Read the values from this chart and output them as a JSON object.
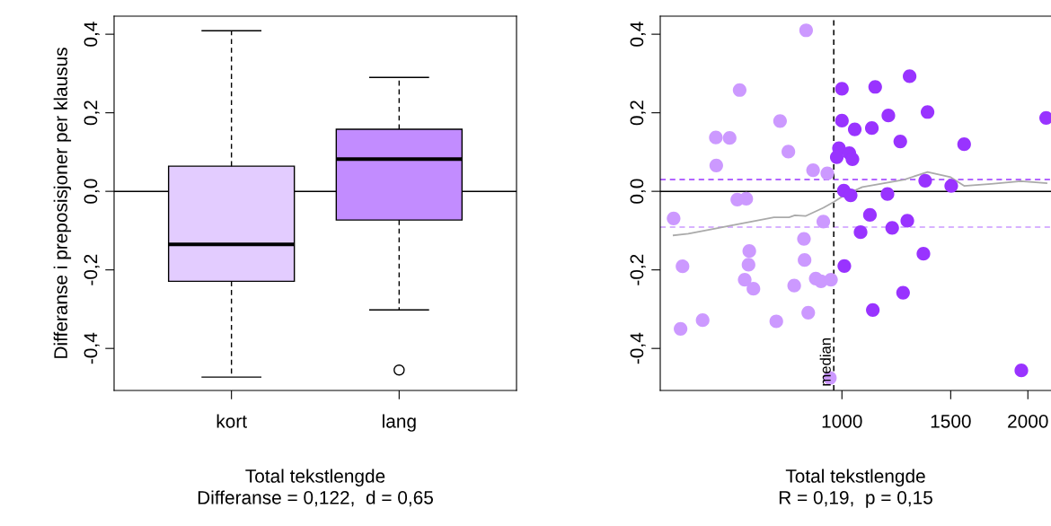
{
  "chart_data": [
    {
      "type": "box",
      "categories": [
        "kort",
        "lang"
      ],
      "colors": [
        "#e3ccff",
        "#c28cff"
      ],
      "boxes": [
        {
          "low": -0.473,
          "q1": -0.229,
          "median": -0.135,
          "q3": 0.064,
          "high": 0.409
        },
        {
          "low": -0.302,
          "q1": -0.073,
          "median": 0.082,
          "q3": 0.158,
          "high": 0.29,
          "outliers": [
            -0.455
          ]
        }
      ],
      "xlabel": "Total tekstlengde\nDifferanse = 0,122,  d = 0,65",
      "ylabel": "Differanse i preposisjoner per klausus",
      "ylim": [
        -0.507,
        0.446
      ],
      "yticks": [
        {
          "value": -0.4,
          "label": "-0,4"
        },
        {
          "value": -0.2,
          "label": "-0,2"
        },
        {
          "value": 0,
          "label": "0,0"
        },
        {
          "value": 0.2,
          "label": "0,2"
        },
        {
          "value": 0.4,
          "label": "0,4"
        }
      ],
      "ref_lines": [
        {
          "axis": "y",
          "value": 0,
          "label": null,
          "color": "#000000",
          "line_style": "solid"
        }
      ],
      "grid": false
    },
    {
      "type": "scatter",
      "log": "x",
      "xlabel": "Total tekstlengde\nR = 0,19,  p = 0,15",
      "marker": "circle",
      "xlim": [
        508,
        2180
      ],
      "xticks": [
        1000,
        1500,
        2000
      ],
      "ylim": [
        -0.507,
        0.446
      ],
      "yticks": [
        {
          "value": -0.4,
          "label": "-0,4"
        },
        {
          "value": -0.2,
          "label": "-0,2"
        },
        {
          "value": 0,
          "label": "0,0"
        },
        {
          "value": 0.2,
          "label": "0,2"
        },
        {
          "value": 0.4,
          "label": "0,4"
        }
      ],
      "series": [
        {
          "color": "#cc99ff",
          "x": [
            875,
            683,
            794,
            625,
            658,
            819,
            626,
            898,
            947,
            677,
            700,
            534,
            933,
            868,
            708,
            552,
            706,
            870,
            696,
            719,
            837,
            907,
            925,
            960,
            882,
            595,
            783,
            548,
            956
          ],
          "values": [
            0.41,
            0.258,
            0.179,
            0.137,
            0.136,
            0.101,
            0.066,
            0.054,
            0.046,
            -0.021,
            -0.019,
            -0.069,
            -0.077,
            -0.121,
            -0.152,
            -0.191,
            -0.187,
            -0.175,
            -0.225,
            -0.248,
            -0.24,
            -0.222,
            -0.229,
            -0.225,
            -0.309,
            -0.328,
            -0.331,
            -0.35,
            -0.475
          ]
        },
        {
          "color": "#9933ff",
          "x": [
            1000,
            1000,
            1049,
            989,
            981,
            1028,
            1040,
            1007,
            1033,
            1072,
            1009,
            1132,
            1287,
            1189,
            1376,
            1118,
            1243,
            1577,
            2141,
            1364,
            1503,
            1185,
            1110,
            1206,
            1276,
            1355,
            1256,
            1122,
            1952
          ],
          "values": [
            0.261,
            0.18,
            0.158,
            0.11,
            0.087,
            0.097,
            0.082,
            0.002,
            -0.01,
            -0.104,
            -0.19,
            0.266,
            0.293,
            0.193,
            0.202,
            0.161,
            0.127,
            0.12,
            0.187,
            0.027,
            0.014,
            -0.007,
            -0.06,
            -0.093,
            -0.075,
            -0.159,
            -0.258,
            -0.302,
            -0.456
          ]
        },
        {
          "type": "line",
          "color": "#aaaaaa",
          "marker": "none",
          "x": [
            534,
            564,
            657,
            776,
            821,
            839,
            873,
            933,
            970,
            1009,
            1079,
            1116,
            1262,
            1376,
            1500,
            1577,
            1744,
            1949,
            2144
          ],
          "values": [
            -0.112,
            -0.108,
            -0.088,
            -0.066,
            -0.066,
            -0.061,
            -0.063,
            -0.042,
            -0.027,
            -0.01,
            0.011,
            0.015,
            0.03,
            0.049,
            0.036,
            0.014,
            0.019,
            0.026,
            0.021
          ]
        }
      ],
      "ref_lines": [
        {
          "axis": "y",
          "value": 0,
          "label": null,
          "color": "#000000",
          "line_style": "solid"
        },
        {
          "axis": "y",
          "value": 0.03,
          "label": null,
          "color": "#9933ff",
          "line_style": "dashed"
        },
        {
          "axis": "y",
          "value": -0.091,
          "label": null,
          "color": "#cc99ff",
          "line_style": "dashed"
        },
        {
          "axis": "x",
          "value": 970,
          "label": "median",
          "color": "#000000",
          "line_style": "dashed"
        }
      ],
      "grid": false
    }
  ]
}
